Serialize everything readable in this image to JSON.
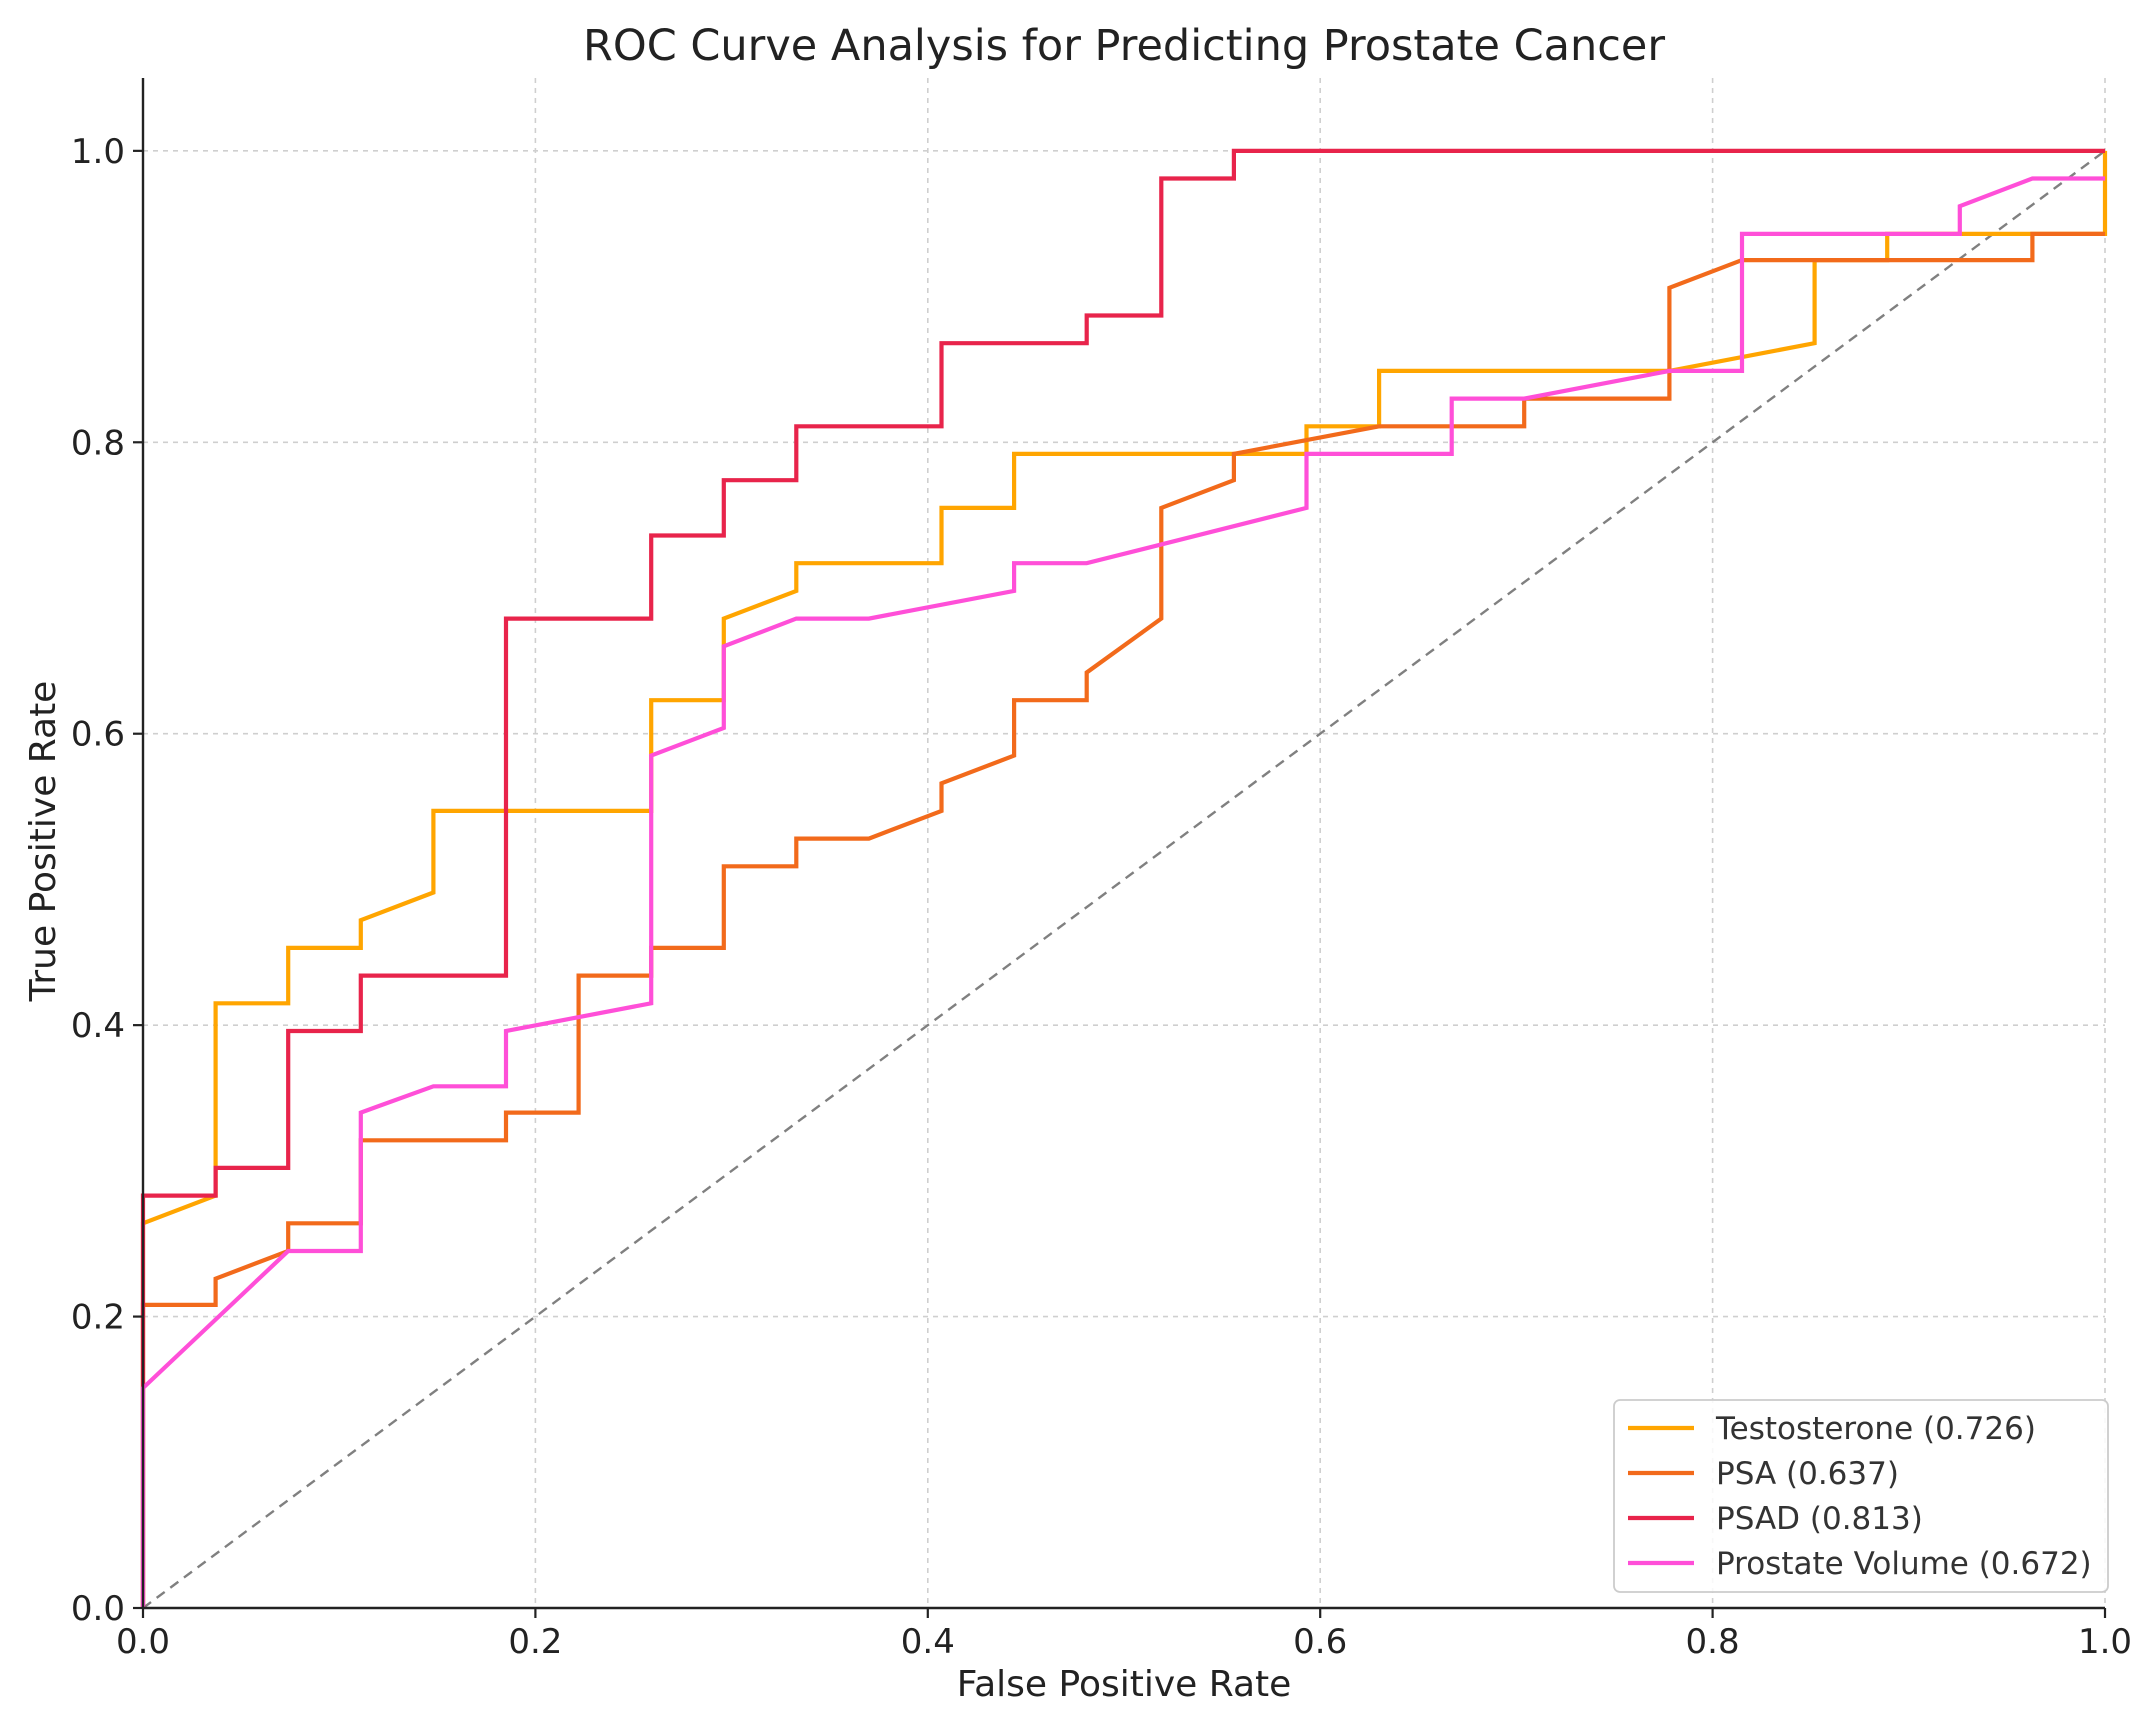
{
  "chart_data": {
    "type": "line",
    "title": "ROC Curve Analysis for Predicting Prostate Cancer",
    "xlabel": "False Positive Rate",
    "ylabel": "True Positive Rate",
    "xlim": [
      0.0,
      1.0
    ],
    "ylim": [
      0.0,
      1.05
    ],
    "xticks": [
      0.0,
      0.2,
      0.4,
      0.6,
      0.8,
      1.0
    ],
    "xtick_labels": [
      "0.0",
      "0.2",
      "0.4",
      "0.6",
      "0.8",
      "1.0"
    ],
    "yticks": [
      0.0,
      0.2,
      0.4,
      0.6,
      0.8,
      1.0
    ],
    "ytick_labels": [
      "0.0",
      "0.2",
      "0.4",
      "0.6",
      "0.8",
      "1.0"
    ],
    "grid": true,
    "legend_position": "bottom-right",
    "reference_line": {
      "name": "chance",
      "x": [
        0,
        1
      ],
      "y": [
        0,
        1
      ],
      "color": "#808080",
      "style": "dashed"
    },
    "series": [
      {
        "name": "Testosterone (0.726)",
        "color": "#FFA500",
        "x": [
          0.0,
          0.0,
          0.037,
          0.037,
          0.074,
          0.074,
          0.111,
          0.111,
          0.148,
          0.148,
          0.259,
          0.259,
          0.296,
          0.296,
          0.333,
          0.333,
          0.407,
          0.407,
          0.444,
          0.444,
          0.593,
          0.593,
          0.63,
          0.63,
          0.778,
          0.852,
          0.852,
          0.889,
          0.889,
          1.0,
          1.0
        ],
        "y": [
          0.0,
          0.264,
          0.283,
          0.415,
          0.415,
          0.453,
          0.453,
          0.472,
          0.491,
          0.547,
          0.547,
          0.623,
          0.623,
          0.679,
          0.698,
          0.717,
          0.717,
          0.755,
          0.755,
          0.792,
          0.792,
          0.811,
          0.811,
          0.849,
          0.849,
          0.868,
          0.925,
          0.925,
          0.943,
          0.943,
          1.0
        ]
      },
      {
        "name": "PSA (0.637)",
        "color": "#F26A1B",
        "x": [
          0.0,
          0.0,
          0.037,
          0.037,
          0.074,
          0.074,
          0.111,
          0.111,
          0.185,
          0.185,
          0.222,
          0.222,
          0.259,
          0.259,
          0.296,
          0.296,
          0.333,
          0.333,
          0.37,
          0.407,
          0.407,
          0.444,
          0.444,
          0.481,
          0.481,
          0.519,
          0.519,
          0.556,
          0.556,
          0.63,
          0.704,
          0.704,
          0.778,
          0.778,
          0.815,
          0.963,
          0.963,
          1.0
        ],
        "y": [
          0.0,
          0.208,
          0.208,
          0.226,
          0.245,
          0.264,
          0.264,
          0.321,
          0.321,
          0.34,
          0.34,
          0.434,
          0.434,
          0.453,
          0.453,
          0.509,
          0.509,
          0.528,
          0.528,
          0.547,
          0.566,
          0.585,
          0.623,
          0.623,
          0.642,
          0.679,
          0.755,
          0.774,
          0.792,
          0.811,
          0.811,
          0.83,
          0.83,
          0.906,
          0.925,
          0.925,
          0.943,
          0.943
        ]
      },
      {
        "name": "PSAD (0.813)",
        "color": "#E8244B",
        "x": [
          0.0,
          0.0,
          0.037,
          0.037,
          0.074,
          0.074,
          0.111,
          0.111,
          0.185,
          0.185,
          0.259,
          0.259,
          0.296,
          0.296,
          0.333,
          0.333,
          0.407,
          0.407,
          0.481,
          0.481,
          0.519,
          0.519,
          0.556,
          0.556,
          1.0
        ],
        "y": [
          0.0,
          0.283,
          0.283,
          0.302,
          0.302,
          0.396,
          0.396,
          0.434,
          0.434,
          0.679,
          0.679,
          0.736,
          0.736,
          0.774,
          0.774,
          0.811,
          0.811,
          0.868,
          0.868,
          0.887,
          0.887,
          0.981,
          0.981,
          1.0,
          1.0
        ]
      },
      {
        "name": "Prostate Volume (0.672)",
        "color": "#FF4FD8",
        "x": [
          0.0,
          0.0,
          0.074,
          0.111,
          0.111,
          0.148,
          0.185,
          0.185,
          0.259,
          0.259,
          0.296,
          0.296,
          0.333,
          0.37,
          0.444,
          0.444,
          0.481,
          0.593,
          0.593,
          0.667,
          0.667,
          0.704,
          0.778,
          0.815,
          0.815,
          0.926,
          0.926,
          0.963,
          1.0
        ],
        "y": [
          0.0,
          0.151,
          0.245,
          0.245,
          0.34,
          0.358,
          0.358,
          0.396,
          0.415,
          0.585,
          0.604,
          0.66,
          0.679,
          0.679,
          0.698,
          0.717,
          0.717,
          0.755,
          0.792,
          0.792,
          0.83,
          0.83,
          0.849,
          0.849,
          0.943,
          0.943,
          0.962,
          0.981,
          0.981
        ]
      }
    ]
  }
}
